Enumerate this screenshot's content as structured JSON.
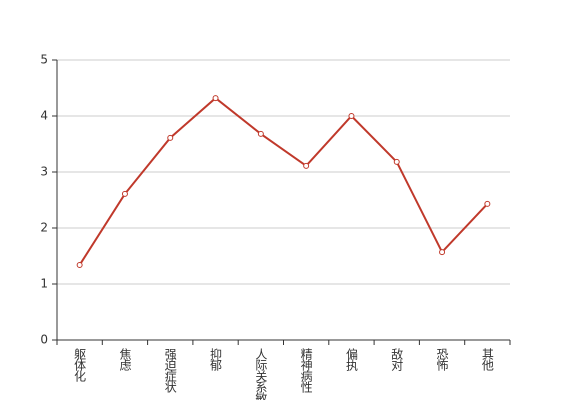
{
  "chart_data": {
    "type": "line",
    "categories": [
      "躯体化",
      "焦虑",
      "强迫症状",
      "抑郁",
      "人际关系敏感",
      "精神病性",
      "偏执",
      "敌对",
      "恐怖",
      "其他"
    ],
    "series": [
      {
        "color": "#c0392b",
        "values": [
          1.34,
          2.61,
          3.61,
          4.32,
          3.68,
          3.11,
          4.0,
          3.18,
          1.57,
          2.43
        ]
      }
    ],
    "ylim": [
      0,
      5
    ],
    "yticks": [
      0,
      1,
      2,
      3,
      4,
      5
    ],
    "grid": true
  }
}
